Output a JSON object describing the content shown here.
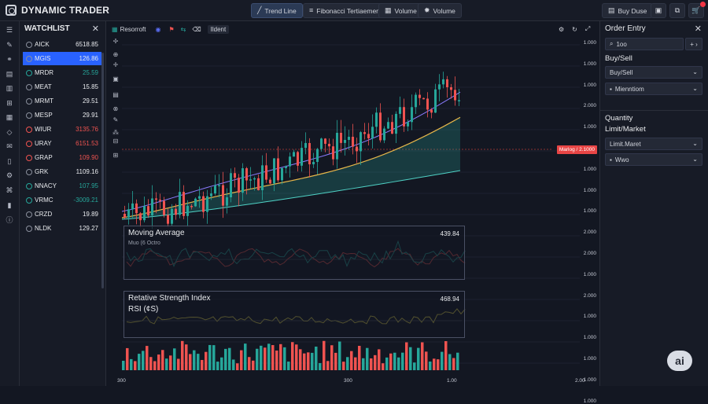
{
  "app": {
    "title": "DYNAMIC TRADER"
  },
  "toolbar": {
    "trend_line": "Trend Line",
    "fibonacci": "Fibonacci Tertiaement",
    "volume1": "Volume",
    "volume2": "Volume",
    "buy_order": "Buy Duse"
  },
  "watchlist": {
    "title": "WATCHLIST",
    "items": [
      {
        "symbol": "AICK",
        "value": "6518.85",
        "color": "#e8eaed"
      },
      {
        "symbol": "MGIS",
        "value": "126.86",
        "color": "#e8eaed"
      },
      {
        "symbol": "MRDR",
        "value": "25.59",
        "color": "#26a69a"
      },
      {
        "symbol": "MEAT",
        "value": "15.85",
        "color": "#e8eaed"
      },
      {
        "symbol": "MRMT",
        "value": "29.51",
        "color": "#e8eaed"
      },
      {
        "symbol": "MESP",
        "value": "29.91",
        "color": "#e8eaed"
      },
      {
        "symbol": "WIUR",
        "value": "3135.76",
        "color": "#ef5350"
      },
      {
        "symbol": "URAY",
        "value": "6151.53",
        "color": "#ef5350"
      },
      {
        "symbol": "GRAP",
        "value": "109.90",
        "color": "#ef5350"
      },
      {
        "symbol": "GRK",
        "value": "1109.16",
        "color": "#e8eaed"
      },
      {
        "symbol": "NNACY",
        "value": "107.95",
        "color": "#26a69a"
      },
      {
        "symbol": "VRMC",
        "value": "-3009.21",
        "color": "#26a69a"
      },
      {
        "symbol": "CRZD",
        "value": "19.89",
        "color": "#e8eaed"
      },
      {
        "symbol": "NLDK",
        "value": "129.27",
        "color": "#e8eaed"
      }
    ]
  },
  "chart": {
    "toolbar_label": "Resorroft",
    "ident_label": "Ildent",
    "price_axis": [
      "1.000",
      "1.000",
      "1.000",
      "2.000",
      "1.000",
      "2.000",
      "1.000",
      "1.000",
      "1.000",
      "2.000",
      "2.000",
      "1.000",
      "2.000",
      "1.000",
      "1.000",
      "1.000",
      "1.000",
      "1.000"
    ],
    "time_axis": [
      "300",
      "300",
      "1.00",
      "2.00"
    ],
    "price_tag": "Marlog / 2.1000",
    "moving_average": {
      "title": "Moving Average",
      "subtitle": "Muo (6 Octro",
      "value": "439.84"
    },
    "rsi": {
      "title": "Retative Strength Index",
      "subtitle": "RSI (¢S)",
      "value": "468.94"
    }
  },
  "order_entry": {
    "title": "Order Entry",
    "input_value": "1oo",
    "buysell_label": "Buy/Sell",
    "buysell_select": "Buy/Sell",
    "misc_select": "Mienntiom",
    "quantity_label": "Quantity",
    "limit_label": "Limit/Market",
    "limit_select": "Limit.Maret",
    "wwo_select": "Wwo"
  },
  "colors": {
    "up": "#26a69a",
    "down": "#ef5350",
    "accent": "#2962ff"
  }
}
